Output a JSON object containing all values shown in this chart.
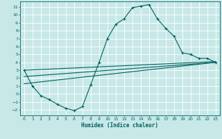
{
  "title": "",
  "xlabel": "Humidex (Indice chaleur)",
  "bg_color": "#c8e8e8",
  "grid_color": "#ffffff",
  "line_color": "#006060",
  "xlim": [
    -0.5,
    23.5
  ],
  "ylim": [
    -2.7,
    11.7
  ],
  "xticks": [
    0,
    1,
    2,
    3,
    4,
    5,
    6,
    7,
    8,
    9,
    10,
    11,
    12,
    13,
    14,
    15,
    16,
    17,
    18,
    19,
    20,
    21,
    22,
    23
  ],
  "yticks": [
    -2,
    -1,
    0,
    1,
    2,
    3,
    4,
    5,
    6,
    7,
    8,
    9,
    10,
    11
  ],
  "curve_x": [
    0,
    1,
    2,
    3,
    4,
    5,
    6,
    7,
    8,
    9,
    10,
    11,
    12,
    13,
    14,
    15,
    16,
    17,
    18,
    19,
    20,
    21,
    22,
    23
  ],
  "curve_y": [
    3.0,
    1.0,
    -0.2,
    -0.7,
    -1.3,
    -1.8,
    -2.1,
    -1.6,
    1.2,
    4.0,
    7.0,
    8.8,
    9.5,
    10.9,
    11.1,
    11.3,
    9.5,
    8.3,
    7.3,
    5.2,
    5.0,
    4.5,
    4.5,
    4.0
  ],
  "line2_x": [
    0,
    23
  ],
  "line2_y": [
    2.2,
    4.0
  ],
  "line3_x": [
    0,
    23
  ],
  "line3_y": [
    1.3,
    4.0
  ],
  "line4_x": [
    0,
    23
  ],
  "line4_y": [
    3.0,
    4.1
  ]
}
